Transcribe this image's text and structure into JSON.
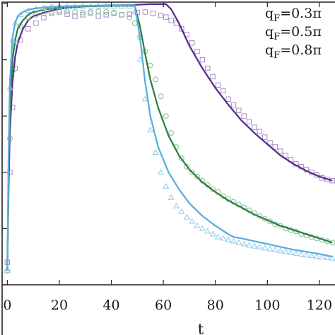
{
  "chart_data": {
    "type": "line",
    "title": "",
    "xlabel": "t",
    "ylabel": "",
    "xlim": [
      -2,
      126
    ],
    "ylim": [
      0,
      1.005
    ],
    "x_ticks": [
      0,
      20,
      40,
      60,
      80,
      100,
      120
    ],
    "x_tick_labels": [
      "0",
      "20",
      "40",
      "60",
      "80",
      "100",
      "120"
    ],
    "y_ticks": [
      0,
      0.2,
      0.4,
      0.6,
      0.8,
      1.0
    ],
    "grid": false,
    "legend_position": "top-right",
    "series": [
      {
        "name": "q_F=0.3π",
        "legend_main": "q",
        "legend_sub": "F",
        "legend_rest": "=0.3π",
        "color": "#5a2d8f",
        "marker_color": "#a58cc3",
        "marker": "square",
        "line": [
          [
            0,
            0.07
          ],
          [
            0.5,
            0.35
          ],
          [
            1,
            0.55
          ],
          [
            2,
            0.72
          ],
          [
            3,
            0.81
          ],
          [
            4,
            0.86
          ],
          [
            6,
            0.91
          ],
          [
            8,
            0.94
          ],
          [
            10,
            0.955
          ],
          [
            15,
            0.97
          ],
          [
            20,
            0.982
          ],
          [
            30,
            0.99
          ],
          [
            40,
            0.993
          ],
          [
            48,
            0.995
          ],
          [
            55,
            0.998
          ],
          [
            61,
            0.998
          ],
          [
            63,
            0.98
          ],
          [
            66,
            0.93
          ],
          [
            70,
            0.85
          ],
          [
            75,
            0.77
          ],
          [
            80,
            0.7
          ],
          [
            85,
            0.64
          ],
          [
            90,
            0.585
          ],
          [
            95,
            0.54
          ],
          [
            100,
            0.5
          ],
          [
            105,
            0.46
          ],
          [
            110,
            0.43
          ],
          [
            115,
            0.405
          ],
          [
            120,
            0.385
          ],
          [
            125,
            0.37
          ]
        ],
        "points": [
          [
            0,
            0.08
          ],
          [
            1,
            0.4
          ],
          [
            2,
            0.63
          ],
          [
            3,
            0.77
          ],
          [
            5,
            0.87
          ],
          [
            8,
            0.91
          ],
          [
            11,
            0.93
          ],
          [
            14,
            0.95
          ],
          [
            17,
            0.965
          ],
          [
            20,
            0.97
          ],
          [
            23,
            0.962
          ],
          [
            26,
            0.955
          ],
          [
            29,
            0.96
          ],
          [
            32,
            0.965
          ],
          [
            35,
            0.955
          ],
          [
            38,
            0.96
          ],
          [
            41,
            0.965
          ],
          [
            44,
            0.96
          ],
          [
            47,
            0.962
          ],
          [
            50,
            0.968
          ],
          [
            53,
            0.97
          ],
          [
            56,
            0.965
          ],
          [
            59,
            0.958
          ],
          [
            61,
            0.952
          ],
          [
            63,
            0.94
          ],
          [
            65,
            0.93
          ],
          [
            67,
            0.91
          ],
          [
            69,
            0.89
          ],
          [
            71,
            0.86
          ],
          [
            73,
            0.83
          ],
          [
            75,
            0.8
          ],
          [
            77,
            0.77
          ],
          [
            79,
            0.74
          ],
          [
            81,
            0.71
          ],
          [
            83,
            0.69
          ],
          [
            85,
            0.66
          ],
          [
            87,
            0.64
          ],
          [
            89,
            0.62
          ],
          [
            91,
            0.6
          ],
          [
            93,
            0.58
          ],
          [
            95,
            0.56
          ],
          [
            97,
            0.545
          ],
          [
            99,
            0.525
          ],
          [
            101,
            0.505
          ],
          [
            103,
            0.49
          ],
          [
            105,
            0.475
          ],
          [
            107,
            0.46
          ],
          [
            109,
            0.445
          ],
          [
            111,
            0.43
          ],
          [
            113,
            0.42
          ],
          [
            115,
            0.41
          ],
          [
            117,
            0.4
          ],
          [
            119,
            0.39
          ],
          [
            121,
            0.38
          ],
          [
            123,
            0.375
          ],
          [
            125,
            0.37
          ]
        ]
      },
      {
        "name": "q_F=0.5π",
        "legend_main": "q",
        "legend_sub": "F",
        "legend_rest": "=0.5π",
        "color": "#2f7f45",
        "marker_color": "#7fbf8a",
        "marker": "circle",
        "line": [
          [
            0,
            0.05
          ],
          [
            0.5,
            0.4
          ],
          [
            1,
            0.62
          ],
          [
            2,
            0.8
          ],
          [
            3,
            0.87
          ],
          [
            4,
            0.91
          ],
          [
            6,
            0.94
          ],
          [
            8,
            0.96
          ],
          [
            10,
            0.97
          ],
          [
            15,
            0.98
          ],
          [
            20,
            0.985
          ],
          [
            30,
            0.99
          ],
          [
            40,
            0.992
          ],
          [
            49,
            0.992
          ],
          [
            51,
            0.92
          ],
          [
            53,
            0.82
          ],
          [
            55,
            0.73
          ],
          [
            58,
            0.63
          ],
          [
            62,
            0.53
          ],
          [
            66,
            0.46
          ],
          [
            70,
            0.41
          ],
          [
            75,
            0.365
          ],
          [
            80,
            0.33
          ],
          [
            85,
            0.3
          ],
          [
            90,
            0.275
          ],
          [
            95,
            0.25
          ],
          [
            100,
            0.23
          ],
          [
            105,
            0.21
          ],
          [
            110,
            0.195
          ],
          [
            115,
            0.18
          ],
          [
            120,
            0.165
          ],
          [
            125,
            0.15
          ]
        ],
        "points": [
          [
            0,
            0.05
          ],
          [
            1,
            0.52
          ],
          [
            2,
            0.76
          ],
          [
            3,
            0.86
          ],
          [
            5,
            0.92
          ],
          [
            8,
            0.95
          ],
          [
            11,
            0.96
          ],
          [
            14,
            0.965
          ],
          [
            17,
            0.97
          ],
          [
            20,
            0.975
          ],
          [
            23,
            0.972
          ],
          [
            26,
            0.97
          ],
          [
            29,
            0.968
          ],
          [
            32,
            0.97
          ],
          [
            35,
            0.972
          ],
          [
            38,
            0.97
          ],
          [
            41,
            0.968
          ],
          [
            44,
            0.96
          ],
          [
            47,
            0.95
          ],
          [
            49,
            0.93
          ],
          [
            51,
            0.88
          ],
          [
            53,
            0.83
          ],
          [
            55,
            0.78
          ],
          [
            57,
            0.73
          ],
          [
            59,
            0.67
          ],
          [
            61,
            0.6
          ],
          [
            63,
            0.54
          ],
          [
            65,
            0.49
          ],
          [
            67,
            0.45
          ],
          [
            69,
            0.42
          ],
          [
            71,
            0.4
          ],
          [
            73,
            0.385
          ],
          [
            75,
            0.37
          ],
          [
            77,
            0.355
          ],
          [
            79,
            0.34
          ],
          [
            81,
            0.33
          ],
          [
            83,
            0.315
          ],
          [
            85,
            0.305
          ],
          [
            87,
            0.295
          ],
          [
            89,
            0.285
          ],
          [
            91,
            0.275
          ],
          [
            93,
            0.265
          ],
          [
            95,
            0.255
          ],
          [
            97,
            0.245
          ],
          [
            99,
            0.235
          ],
          [
            101,
            0.225
          ],
          [
            103,
            0.215
          ],
          [
            105,
            0.21
          ],
          [
            107,
            0.2
          ],
          [
            109,
            0.195
          ],
          [
            111,
            0.19
          ],
          [
            113,
            0.18
          ],
          [
            115,
            0.175
          ],
          [
            117,
            0.17
          ],
          [
            119,
            0.165
          ],
          [
            121,
            0.16
          ],
          [
            123,
            0.155
          ],
          [
            125,
            0.15
          ]
        ]
      },
      {
        "name": "q_F=0.8π",
        "legend_main": "q",
        "legend_sub": "F",
        "legend_rest": "=0.8π",
        "color": "#5aaee0",
        "marker_color": "#92c9ea",
        "marker": "triangle",
        "line": [
          [
            0,
            0.05
          ],
          [
            0.5,
            0.48
          ],
          [
            1,
            0.72
          ],
          [
            2,
            0.88
          ],
          [
            3,
            0.93
          ],
          [
            4,
            0.955
          ],
          [
            6,
            0.97
          ],
          [
            8,
            0.978
          ],
          [
            10,
            0.982
          ],
          [
            15,
            0.987
          ],
          [
            20,
            0.99
          ],
          [
            30,
            0.992
          ],
          [
            40,
            0.994
          ],
          [
            49,
            0.994
          ],
          [
            51,
            0.88
          ],
          [
            53,
            0.72
          ],
          [
            55,
            0.6
          ],
          [
            58,
            0.49
          ],
          [
            62,
            0.4
          ],
          [
            66,
            0.34
          ],
          [
            70,
            0.29
          ],
          [
            75,
            0.245
          ],
          [
            80,
            0.21
          ],
          [
            85,
            0.18
          ],
          [
            87,
            0.17
          ],
          [
            90,
            0.165
          ],
          [
            95,
            0.155
          ],
          [
            100,
            0.145
          ],
          [
            110,
            0.125
          ],
          [
            120,
            0.11
          ],
          [
            125,
            0.1
          ]
        ],
        "points": [
          [
            0,
            0.05
          ],
          [
            1,
            0.7
          ],
          [
            2,
            0.87
          ],
          [
            3,
            0.93
          ],
          [
            5,
            0.96
          ],
          [
            8,
            0.975
          ],
          [
            11,
            0.98
          ],
          [
            14,
            0.985
          ],
          [
            17,
            0.99
          ],
          [
            20,
            0.99
          ],
          [
            23,
            0.99
          ],
          [
            26,
            0.99
          ],
          [
            29,
            0.99
          ],
          [
            32,
            0.99
          ],
          [
            35,
            0.99
          ],
          [
            38,
            0.99
          ],
          [
            41,
            0.99
          ],
          [
            44,
            0.99
          ],
          [
            47,
            0.99
          ],
          [
            49,
            0.97
          ],
          [
            51,
            0.8
          ],
          [
            53,
            0.66
          ],
          [
            55,
            0.55
          ],
          [
            57,
            0.47
          ],
          [
            59,
            0.4
          ],
          [
            61,
            0.35
          ],
          [
            63,
            0.31
          ],
          [
            65,
            0.28
          ],
          [
            67,
            0.26
          ],
          [
            69,
            0.24
          ],
          [
            71,
            0.225
          ],
          [
            73,
            0.21
          ],
          [
            75,
            0.2
          ],
          [
            77,
            0.19
          ],
          [
            79,
            0.18
          ],
          [
            81,
            0.17
          ],
          [
            83,
            0.165
          ],
          [
            85,
            0.16
          ],
          [
            87,
            0.155
          ],
          [
            89,
            0.15
          ],
          [
            91,
            0.145
          ],
          [
            93,
            0.14
          ],
          [
            95,
            0.137
          ],
          [
            97,
            0.134
          ],
          [
            99,
            0.13
          ],
          [
            101,
            0.127
          ],
          [
            103,
            0.124
          ],
          [
            105,
            0.12
          ],
          [
            107,
            0.117
          ],
          [
            109,
            0.114
          ],
          [
            111,
            0.111
          ],
          [
            113,
            0.108
          ],
          [
            115,
            0.105
          ],
          [
            117,
            0.103
          ],
          [
            119,
            0.1
          ],
          [
            121,
            0.098
          ],
          [
            123,
            0.096
          ],
          [
            125,
            0.094
          ]
        ]
      }
    ]
  }
}
